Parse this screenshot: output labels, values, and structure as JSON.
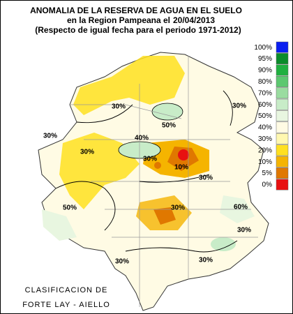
{
  "header": {
    "title": "ANOMALIA DE LA RESERVA DE AGUA EN EL SUELO",
    "subtitle": "en la Region Pampeana el",
    "date": "20/04/2013",
    "note": "(Respecto de igual fecha para el periodo 1971-2012)"
  },
  "legend": [
    {
      "label": "100%",
      "color": "#0a1ef0"
    },
    {
      "label": "95%",
      "color": "#0a8c2a"
    },
    {
      "label": "90%",
      "color": "#20b040"
    },
    {
      "label": "80%",
      "color": "#5cc870"
    },
    {
      "label": "70%",
      "color": "#9adca0"
    },
    {
      "label": "60%",
      "color": "#c8ecc8"
    },
    {
      "label": "50%",
      "color": "#e8f6e0"
    },
    {
      "label": "40%",
      "color": "#fffbe4"
    },
    {
      "label": "30%",
      "color": "#fff8b0"
    },
    {
      "label": "20%",
      "color": "#ffe020"
    },
    {
      "label": "10%",
      "color": "#f5b400"
    },
    {
      "label": "5%",
      "color": "#e07800"
    },
    {
      "label": "0%",
      "color": "#e81010"
    }
  ],
  "map_labels": [
    "30%",
    "50%",
    "40%",
    "30%",
    "30%",
    "30%",
    "10%",
    "30%",
    "30%",
    "50%",
    "30%",
    "60%",
    "30%",
    "30%",
    "30%"
  ],
  "credit": [
    "CLASIFICACION DE",
    "FORTE LAY - AIELLO"
  ]
}
